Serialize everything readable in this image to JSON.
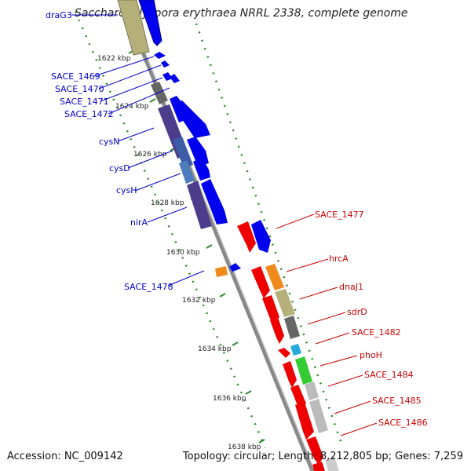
{
  "title": "Saccharopolyspora erythraea NRRL 2338, complete genome",
  "footer": {
    "accession": "Accession: NC_009142",
    "summary": "Topology: circular; Length: 8,212,805 bp; Genes: 7,259"
  },
  "colors": {
    "left_label": "#0000cc",
    "right_label": "#cc0000",
    "ruler_tick": "#2e8b2e",
    "backbone": "#888888"
  },
  "ruler_labels": [
    "1622 kbp",
    "1624 kbp",
    "1626 kbp",
    "1628 kbp",
    "1630 kbp",
    "1632 kbp",
    "1634 kbp",
    "1636 kbp",
    "1638 kbp"
  ],
  "left_labels": [
    "draG3",
    "SACE_1469",
    "SACE_1470",
    "SACE_1471",
    "SACE_1472",
    "cysN",
    "cysD",
    "cysH",
    "nirA",
    "SACE_1478"
  ],
  "right_labels": [
    "SACE_1477",
    "hrcA",
    "dnaJ1",
    "sdrD",
    "SACE_1482",
    "phoH",
    "SACE_1484",
    "SACE_1485",
    "SACE_1486"
  ]
}
